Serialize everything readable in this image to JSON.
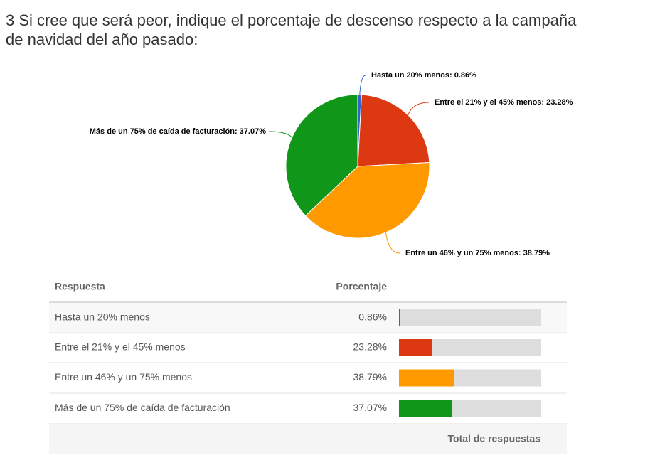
{
  "chart_data": {
    "type": "pie",
    "title": "3 Si cree que será peor, indique el porcentaje de descenso respecto a la campaña",
    "subtitle": "de navidad del año pasado:",
    "categories": [
      "Hasta un 20% menos",
      "Entre el 21% y el 45% menos",
      "Entre un 46% y un 75% menos",
      "Más de un 75% de caída de facturación"
    ],
    "values": [
      0.86,
      23.28,
      38.79,
      37.07
    ],
    "value_labels": [
      "0.86%",
      "23.28%",
      "38.79%",
      "37.07%"
    ],
    "data_labels": [
      "Hasta un 20% menos: 0.86%",
      "Entre el 21% y el 45% menos: 23.28%",
      "Entre un 46% y un 75% menos: 38.79%",
      "Más de un 75% de caída de facturación: 37.07%"
    ],
    "colors": [
      "#3366cc",
      "#dc3912",
      "#ff9900",
      "#109618"
    ],
    "xlim": [
      0,
      100
    ],
    "table": {
      "header": [
        "Respuesta",
        "Porcentaje"
      ],
      "footer": "Total de respuestas"
    }
  }
}
